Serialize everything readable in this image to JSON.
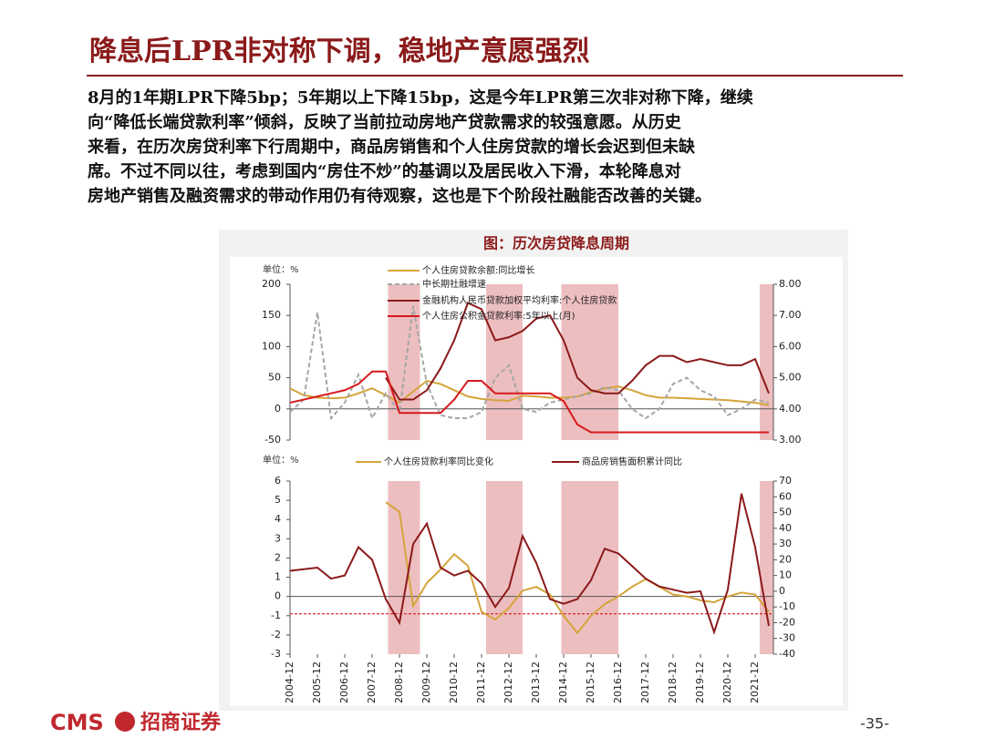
{
  "header": {
    "title": "降息后LPR非对称下调，稳地产意愿强烈"
  },
  "body": {
    "lines": [
      "8月的1年期LPR下降5bp；5年期以上下降15bp，这是今年LPR第三次非对称下降，继续",
      "向“降低长端贷款利率”倾斜，反映了当前拉动房地产贷款需求的较强意愿。从历史",
      "来看，在历次房贷利率下行周期中，商品房销售和个人住房贷款的增长会迟到但未缺",
      "席。不过不同以往，考虑到国内“房住不炒”的基调以及居民收入下滑，本轮降息对",
      "房地产销售及融资需求的带动作用仍有待观察，这也是下个阶段社融能否改善的关键。"
    ]
  },
  "figure": {
    "title": "图：历次房贷降息周期"
  },
  "chart_data": [
    {
      "type": "line",
      "y_label": "单位：%",
      "x": [
        "2004-12",
        "2005-06",
        "2005-12",
        "2006-06",
        "2006-12",
        "2007-06",
        "2007-12",
        "2008-06",
        "2008-12",
        "2009-06",
        "2009-12",
        "2010-06",
        "2010-12",
        "2011-06",
        "2011-12",
        "2012-06",
        "2012-12",
        "2013-06",
        "2013-12",
        "2014-06",
        "2014-12",
        "2015-06",
        "2015-12",
        "2016-06",
        "2016-12",
        "2017-06",
        "2017-12",
        "2018-06",
        "2018-12",
        "2019-06",
        "2019-12",
        "2020-06",
        "2020-12",
        "2021-06",
        "2021-12",
        "2022-06"
      ],
      "xlim": [
        "2004-12",
        "2022-08"
      ],
      "ylim": [
        -50,
        200
      ],
      "yticks": [
        -50,
        0,
        50,
        100,
        150,
        200
      ],
      "y2lim": [
        3,
        8
      ],
      "y2ticks": [
        {
          "value": 3,
          "label": "3.00"
        },
        {
          "value": 4,
          "label": "4.00"
        },
        {
          "value": 5,
          "label": "5.00"
        },
        {
          "value": 6,
          "label": "6.00"
        },
        {
          "value": 7,
          "label": "7.00"
        },
        {
          "value": 8,
          "label": "8.00"
        }
      ],
      "shaded_periods": [
        [
          "2008-07",
          "2009-09"
        ],
        [
          "2012-02",
          "2013-06"
        ],
        [
          "2014-11",
          "2016-12"
        ],
        [
          "2022-02",
          "2022-08"
        ]
      ],
      "shade_color": "#eab3b5",
      "series": [
        {
          "name": "个人住房贷款余额:同比增长",
          "color": "#d4a43a",
          "line_style": "solid",
          "values": [
            33,
            22,
            18,
            17,
            18,
            25,
            33,
            22,
            10,
            28,
            45,
            40,
            30,
            20,
            16,
            14,
            13,
            21,
            20,
            18,
            18,
            20,
            27,
            33,
            36,
            30,
            22,
            18,
            18,
            17,
            16,
            15,
            14,
            12,
            10,
            6
          ]
        },
        {
          "name": "中长期社融增速",
          "color": "#a6a6a6",
          "line_style": "dashed",
          "values": [
            -5,
            15,
            155,
            -15,
            10,
            55,
            -15,
            25,
            -5,
            165,
            40,
            -10,
            -15,
            -15,
            -5,
            50,
            70,
            0,
            -5,
            10,
            15,
            20,
            25,
            35,
            30,
            0,
            -15,
            0,
            40,
            50,
            30,
            20,
            -10,
            0,
            15,
            10
          ]
        },
        {
          "name": "金融机构人民币贷款加权平均利率:个人住房贷款",
          "color": "#8b1a1a",
          "line_style": "solid",
          "axis": "y2",
          "values": [
            null,
            null,
            null,
            null,
            null,
            null,
            null,
            5.0,
            4.3,
            4.3,
            4.6,
            5.3,
            6.2,
            7.4,
            7.2,
            6.2,
            6.3,
            6.5,
            6.9,
            7.0,
            6.2,
            5.0,
            4.6,
            4.5,
            4.5,
            4.9,
            5.4,
            5.7,
            5.7,
            5.5,
            5.6,
            5.5,
            5.4,
            5.4,
            5.6,
            4.5
          ]
        },
        {
          "name": "个人住房公积金贷款利率:5年以上(月)",
          "color": "#d7191c",
          "line_style": "solid",
          "axis": "y2",
          "values": [
            4.2,
            4.3,
            4.4,
            4.5,
            4.6,
            4.8,
            5.2,
            5.2,
            3.87,
            3.87,
            3.87,
            3.87,
            4.3,
            4.9,
            4.9,
            4.5,
            4.5,
            4.5,
            4.5,
            4.5,
            4.25,
            3.5,
            3.25,
            3.25,
            3.25,
            3.25,
            3.25,
            3.25,
            3.25,
            3.25,
            3.25,
            3.25,
            3.25,
            3.25,
            3.25,
            3.25
          ]
        }
      ]
    },
    {
      "type": "line",
      "y_label": "单位：%",
      "x": [
        "2004-12",
        "2005-06",
        "2005-12",
        "2006-06",
        "2006-12",
        "2007-06",
        "2007-12",
        "2008-06",
        "2008-12",
        "2009-06",
        "2009-12",
        "2010-06",
        "2010-12",
        "2011-06",
        "2011-12",
        "2012-06",
        "2012-12",
        "2013-06",
        "2013-12",
        "2014-06",
        "2014-12",
        "2015-06",
        "2015-12",
        "2016-06",
        "2016-12",
        "2017-06",
        "2017-12",
        "2018-06",
        "2018-12",
        "2019-06",
        "2019-12",
        "2020-06",
        "2020-12",
        "2021-06",
        "2021-12",
        "2022-06"
      ],
      "xlim": [
        "2004-12",
        "2022-08"
      ],
      "xticks": [
        "2004-12",
        "2005-12",
        "2006-12",
        "2007-12",
        "2008-12",
        "2009-12",
        "2010-12",
        "2011-12",
        "2012-12",
        "2013-12",
        "2014-12",
        "2015-12",
        "2016-12",
        "2017-12",
        "2018-12",
        "2019-12",
        "2020-12",
        "2021-12"
      ],
      "ylim": [
        -3,
        6
      ],
      "yticks": [
        -3,
        -2,
        -1,
        0,
        1,
        2,
        3,
        4,
        5,
        6
      ],
      "y2lim": [
        -40,
        70
      ],
      "y2ticks": [
        -40,
        -30,
        -20,
        -10,
        0,
        10,
        20,
        30,
        40,
        50,
        60,
        70
      ],
      "shaded_periods": [
        [
          "2008-07",
          "2009-09"
        ],
        [
          "2012-02",
          "2013-06"
        ],
        [
          "2014-11",
          "2016-12"
        ],
        [
          "2022-02",
          "2022-08"
        ]
      ],
      "shade_color": "#eab3b5",
      "ref_line": {
        "value": -0.9,
        "color": "#d7191c"
      },
      "series": [
        {
          "name": "个人住房贷款利率同比变化",
          "color": "#d4a43a",
          "line_style": "solid",
          "values": [
            null,
            null,
            null,
            null,
            null,
            null,
            null,
            4.9,
            4.4,
            -0.5,
            0.7,
            1.4,
            2.2,
            1.6,
            -0.8,
            -1.2,
            -0.6,
            0.3,
            0.5,
            0.1,
            -1.0,
            -1.9,
            -1.0,
            -0.4,
            0.0,
            0.5,
            0.9,
            0.5,
            0.1,
            0.0,
            -0.2,
            -0.3,
            0.0,
            0.2,
            0.1,
            -0.8
          ]
        },
        {
          "name": "商品房销售面积累计同比",
          "color": "#8b1a1a",
          "line_style": "solid",
          "axis": "y2",
          "values": [
            13,
            14,
            15,
            8,
            10,
            28,
            20,
            -5,
            -20,
            30,
            43,
            15,
            10,
            13,
            5,
            -10,
            2,
            35,
            18,
            -5,
            -8,
            -5,
            7,
            27,
            24,
            16,
            8,
            3,
            1,
            -1,
            0,
            -26,
            1,
            62,
            28,
            -22
          ]
        }
      ]
    }
  ],
  "footer": {
    "brand": "CMS",
    "company": "招商证券",
    "page": "-35-"
  }
}
